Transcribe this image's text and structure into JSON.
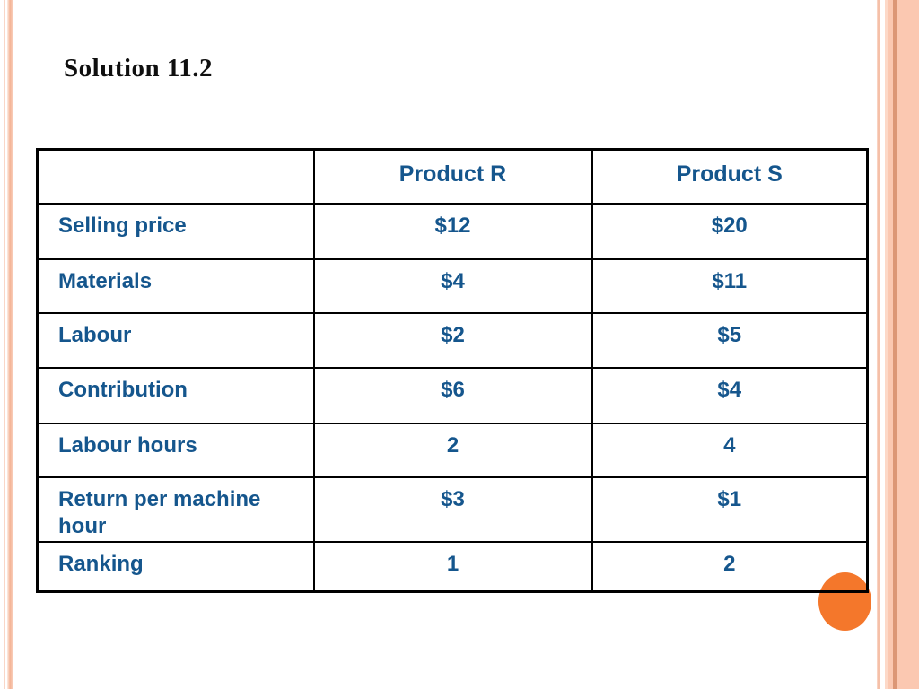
{
  "slide": {
    "title": "Solution 11.2"
  },
  "table": {
    "text_color": "#15568d",
    "columns": [
      "",
      "Product R",
      "Product S"
    ],
    "rows": [
      [
        "Selling price",
        "$12",
        "$20"
      ],
      [
        "Materials",
        "$4",
        "$11"
      ],
      [
        "Labour",
        "$2",
        "$5"
      ],
      [
        "Contribution",
        "$6",
        "$4"
      ],
      [
        "Labour hours",
        "2",
        "4"
      ],
      [
        "Return per machine hour",
        "$3",
        "$1"
      ],
      [
        "Ranking",
        "1",
        "2"
      ]
    ]
  },
  "decor": {
    "page_marker_circle_color": "#f4772b",
    "edge_stripe_color": "#f4b294",
    "right_band_color": "#fbc8b1",
    "right_band_line_color": "#dc9776"
  }
}
